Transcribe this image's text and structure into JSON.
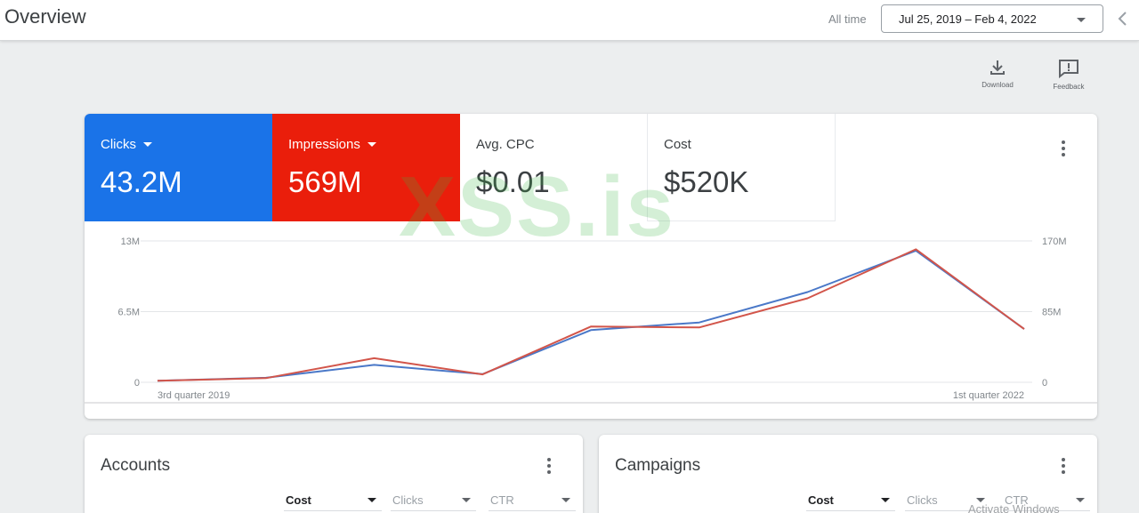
{
  "header": {
    "title": "Overview",
    "all_time_label": "All time",
    "date_range": "Jul 25, 2019 – Feb 4, 2022"
  },
  "toolbar": {
    "download_label": "Download",
    "feedback_label": "Feedback"
  },
  "metrics": [
    {
      "label": "Clicks",
      "value": "43.2M",
      "color": "#1a73e8"
    },
    {
      "label": "Impressions",
      "value": "569M",
      "color": "#ea1e0b"
    },
    {
      "label": "Avg. CPC",
      "value": "$0.01"
    },
    {
      "label": "Cost",
      "value": "$520K"
    }
  ],
  "chart_data": {
    "type": "line",
    "x_tick_labels": [
      "3rd quarter 2019",
      "1st quarter 2022"
    ],
    "y_left_ticks": [
      "13M",
      "6.5M",
      "0"
    ],
    "y_right_ticks": [
      "170M",
      "85M",
      "0"
    ],
    "ylim_left": [
      0,
      13000000
    ],
    "ylim_right": [
      0,
      170000000
    ],
    "grid": true,
    "series": [
      {
        "name": "Clicks",
        "axis": "left",
        "color": "#4a78c8",
        "values": [
          150000,
          420000,
          1600000,
          750000,
          4800000,
          5500000,
          8300000,
          12100000,
          4900000
        ]
      },
      {
        "name": "Impressions",
        "axis": "right",
        "color": "#d2554a",
        "values": [
          1800000,
          5000000,
          29000000,
          9500000,
          67000000,
          66000000,
          101000000,
          160000000,
          64000000
        ]
      }
    ]
  },
  "watermark": "XSS.is",
  "accounts": {
    "title": "Accounts",
    "columns": [
      "Cost",
      "Clicks",
      "CTR"
    ]
  },
  "campaigns": {
    "title": "Campaigns",
    "columns": [
      "Cost",
      "Clicks",
      "CTR"
    ]
  },
  "footer_note": "Activate Windows"
}
